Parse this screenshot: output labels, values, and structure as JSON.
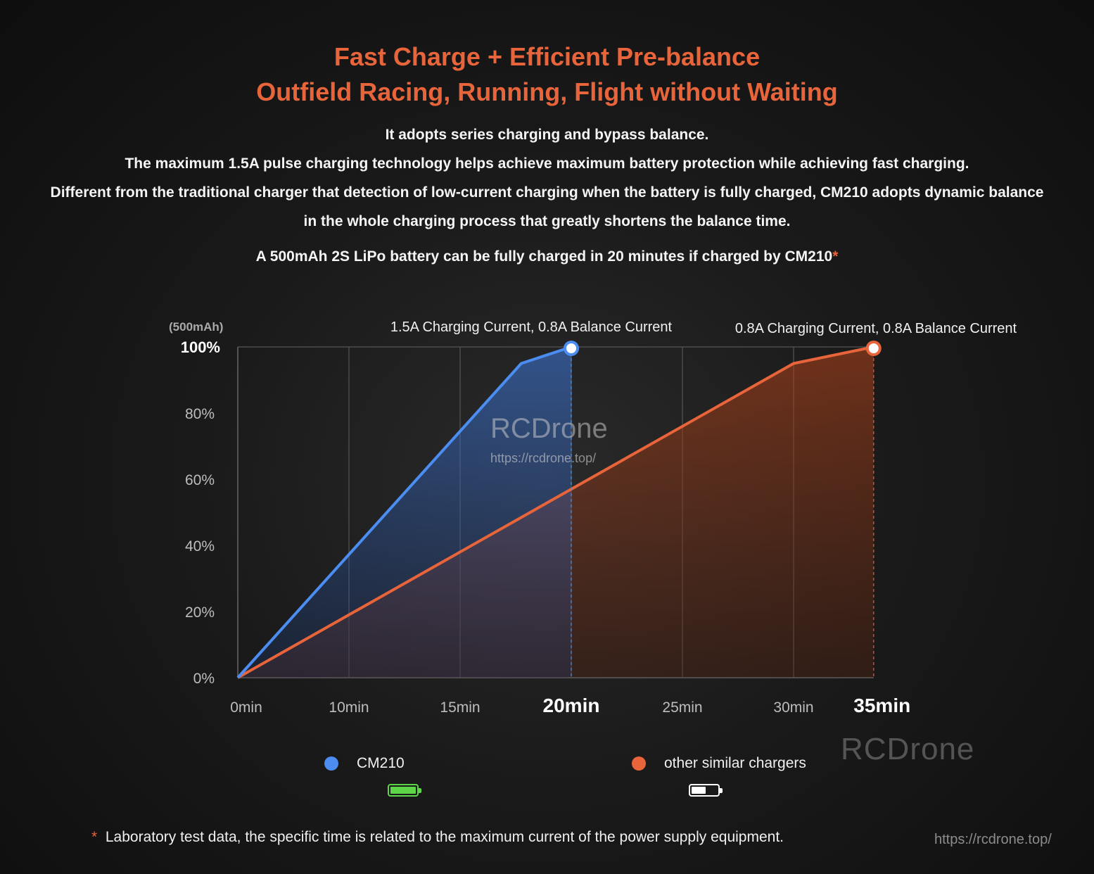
{
  "headline": {
    "line1": "Fast Charge + Efficient Pre-balance",
    "line2": "Outfield Racing, Running, Flight without Waiting"
  },
  "description": {
    "p1": "It adopts series charging and bypass balance.",
    "p2": "The maximum 1.5A pulse charging technology helps achieve maximum battery protection while achieving fast charging.",
    "p3": "Different from the traditional charger that detection of low-current charging when the battery is fully charged, CM210 adopts dynamic balance in the whole charging process that greatly shortens the balance time.",
    "claim": "A 500mAh 2S LiPo battery can be fully charged in 20 minutes if charged by CM210",
    "asterisk": "*"
  },
  "chart_data": {
    "type": "area",
    "title": "",
    "ylabel": "(500mAh)",
    "xlabel": "",
    "categories": [
      "0min",
      "10min",
      "15min",
      "20min",
      "25min",
      "30min",
      "35min"
    ],
    "highlight_ticks": [
      "20min",
      "35min"
    ],
    "y_ticks": [
      "0%",
      "20%",
      "40%",
      "60%",
      "80%",
      "100%"
    ],
    "x_positions": [
      0,
      1,
      2,
      3,
      4,
      5,
      5.72
    ],
    "ylim": [
      0,
      100
    ],
    "grid": true,
    "series": [
      {
        "name": "CM210",
        "color": "#4b8df0",
        "x": [
          0,
          2.55,
          3.0
        ],
        "y": [
          0,
          95,
          100
        ],
        "annotation": "1.5A Charging Current, 0.8A Balance Current",
        "end_label_x": "20min"
      },
      {
        "name": "other similar chargers",
        "color": "#e8643a",
        "x": [
          0,
          5.0,
          5.72
        ],
        "y": [
          0,
          95,
          100
        ],
        "annotation": "0.8A Charging Current, 0.8A Balance Current",
        "end_label_x": "35min"
      }
    ],
    "watermark": {
      "name": "RCDrone",
      "url": "https://rcdrone.top/"
    }
  },
  "legend": {
    "cm210_label": "CM210",
    "cm210_color": "#4b8df0",
    "cm210_battery_color": "#5cd647",
    "other_label": "other similar chargers",
    "other_color": "#e8643a",
    "other_battery_color": "#ffffff"
  },
  "footnote": {
    "star": "*",
    "text": "Laboratory test data, the specific time is related to the maximum current of the power supply equipment."
  },
  "watermark": {
    "brand": "RCDrone",
    "url": "https://rcdrone.top/"
  }
}
